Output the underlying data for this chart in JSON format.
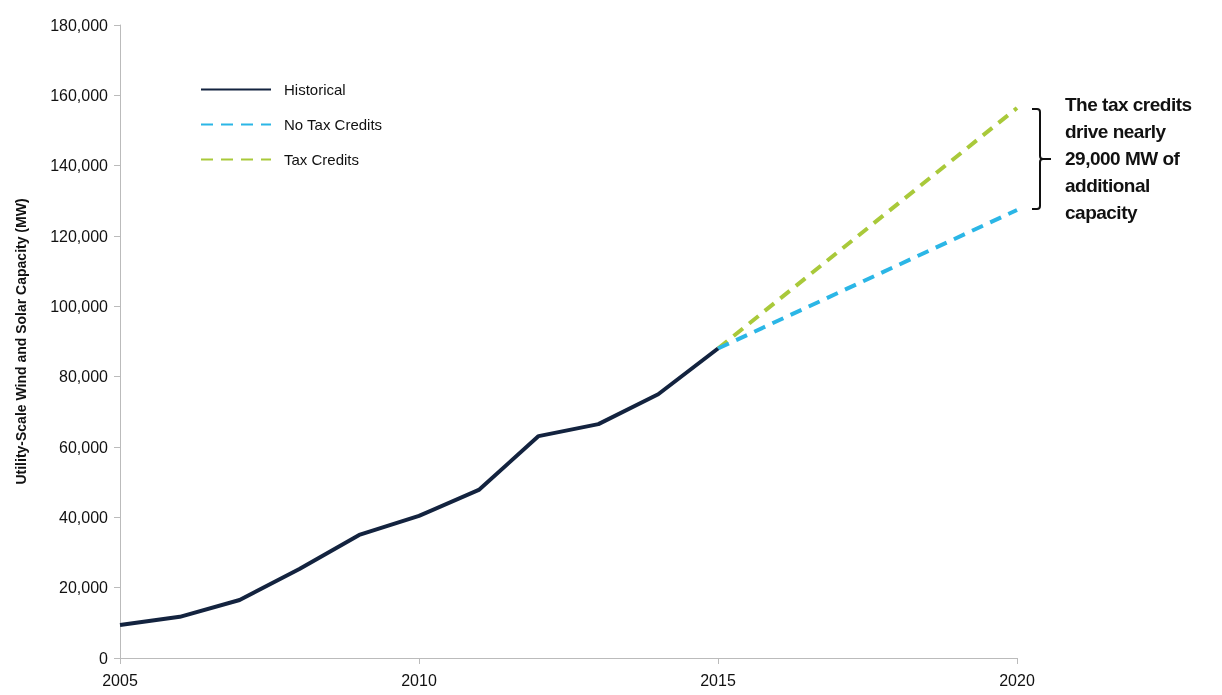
{
  "chart_data": {
    "type": "line",
    "ylabel": "Utility-Scale Wind and Solar Capacity (MW)",
    "xlim": [
      2005,
      2020
    ],
    "xticks": [
      2005,
      2010,
      2015,
      2020
    ],
    "ylim": [
      0,
      180000
    ],
    "yticks": [
      0,
      {
        "value": 20000,
        "label": "20,000"
      },
      {
        "value": 40000,
        "label": "40,000"
      },
      {
        "value": 60000,
        "label": "60,000"
      },
      {
        "value": 80000,
        "label": "80,000"
      },
      {
        "value": 100000,
        "label": "100,000"
      },
      {
        "value": 120000,
        "label": "120,000"
      },
      {
        "value": 140000,
        "label": "140,000"
      },
      {
        "value": 160000,
        "label": "160,000"
      },
      {
        "value": 180000,
        "label": "180,000"
      }
    ],
    "grid": false,
    "legend": "top left",
    "marker": "none",
    "annotations": [
      "The tax credits drive nearly 29,000 MW of additional capacity"
    ],
    "series": [
      {
        "name": "Historical",
        "color": "#13233f",
        "line_style": "solid",
        "x": [
          2005,
          2006,
          2007,
          2008,
          2009,
          2010,
          2011,
          2012,
          2013,
          2014,
          2015
        ],
        "values": [
          9400,
          11700,
          16500,
          25300,
          35000,
          40400,
          47800,
          63100,
          66500,
          75000,
          88000
        ]
      },
      {
        "name": "No Tax Credits",
        "color": "#2bb6e6",
        "line_style": "dashed",
        "x": [
          2015,
          2020
        ],
        "values": [
          88000,
          127400
        ]
      },
      {
        "name": "Tax Credits",
        "color": "#a9c93a",
        "line_style": "dashed",
        "x": [
          2015,
          2020
        ],
        "values": [
          88000,
          156400
        ]
      }
    ]
  }
}
